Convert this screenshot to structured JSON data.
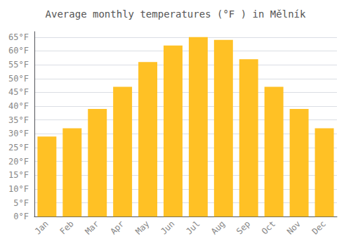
{
  "chart_data": {
    "type": "bar",
    "title": "Average monthly temperatures (°F ) in Mělník",
    "categories": [
      "Jan",
      "Feb",
      "Mar",
      "Apr",
      "May",
      "Jun",
      "Jul",
      "Aug",
      "Sep",
      "Oct",
      "Nov",
      "Dec"
    ],
    "values": [
      29,
      32,
      39,
      47,
      56,
      62,
      65,
      64,
      57,
      47,
      39,
      32
    ],
    "color": "#FFC125",
    "ylim": [
      0,
      67
    ],
    "yticks": [
      {
        "value": 0,
        "label": "0°F"
      },
      {
        "value": 5,
        "label": "5°F"
      },
      {
        "value": 10,
        "label": "10°F"
      },
      {
        "value": 15,
        "label": "15°F"
      },
      {
        "value": 20,
        "label": "20°F"
      },
      {
        "value": 25,
        "label": "25°F"
      },
      {
        "value": 30,
        "label": "30°F"
      },
      {
        "value": 35,
        "label": "35°F"
      },
      {
        "value": 40,
        "label": "40°F"
      },
      {
        "value": 45,
        "label": "45°F"
      },
      {
        "value": 50,
        "label": "50°F"
      },
      {
        "value": 55,
        "label": "55°F"
      },
      {
        "value": 60,
        "label": "60°F"
      },
      {
        "value": 65,
        "label": "65°F"
      }
    ],
    "grid": true
  }
}
